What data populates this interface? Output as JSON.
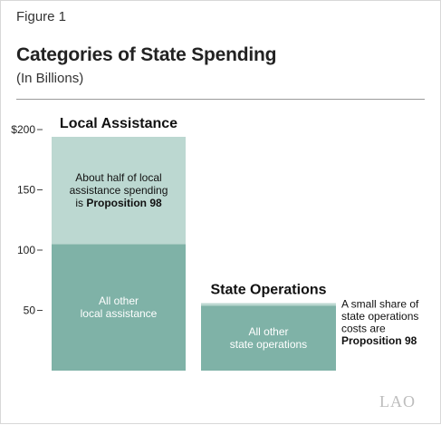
{
  "figure_label": "Figure 1",
  "title": "Categories of State Spending",
  "subtitle": "(In Billions)",
  "logo_text": "LAO",
  "colors": {
    "dark_segment": "#7fb2a7",
    "light_segment": "#bcd8d1",
    "dark_text": "#111111",
    "light_text": "#ffffff",
    "tick_line": "#444444"
  },
  "chart_data": {
    "type": "bar",
    "stacked": true,
    "ylim": [
      0,
      200
    ],
    "yticks": [
      50,
      100,
      150,
      200
    ],
    "ytick_labels": [
      "50",
      "100",
      "150",
      "$200"
    ],
    "categories": [
      "Local Assistance",
      "State Operations"
    ],
    "series": [
      {
        "key": "other",
        "values": [
          105,
          54
        ],
        "labels": [
          [
            "All other",
            "local assistance"
          ],
          [
            "All other",
            "state operations"
          ]
        ]
      },
      {
        "key": "prop98",
        "values": [
          89,
          2
        ],
        "labels": [
          [
            "About half of local",
            "assistance spending",
            "is |Proposition 98"
          ],
          []
        ]
      }
    ],
    "annotations": [
      {
        "category": "State Operations",
        "lines": [
          "A small share of",
          "state operations",
          "costs are",
          "|Proposition 98"
        ]
      }
    ]
  }
}
